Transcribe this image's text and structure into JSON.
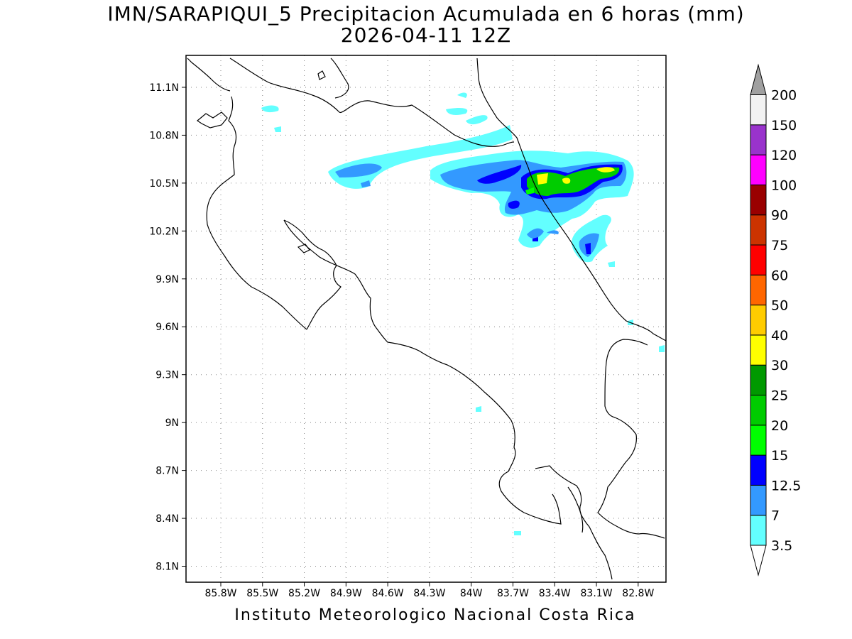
{
  "header": {
    "title": "IMN/SARAPIQUI_5 Precipitacion Acumulada en 6 horas (mm)",
    "subtitle": "2026-04-11 12Z"
  },
  "footer": {
    "credit": "Instituto Meteorologico Nacional Costa Rica"
  },
  "map": {
    "lon_range": [
      -86.05,
      -82.6
    ],
    "lat_range": [
      8.0,
      11.3
    ],
    "x_ticks": [
      {
        "value": -85.8,
        "label": "85.8W"
      },
      {
        "value": -85.5,
        "label": "85.5W"
      },
      {
        "value": -85.2,
        "label": "85.2W"
      },
      {
        "value": -84.9,
        "label": "84.9W"
      },
      {
        "value": -84.6,
        "label": "84.6W"
      },
      {
        "value": -84.3,
        "label": "84.3W"
      },
      {
        "value": -84.0,
        "label": "84W"
      },
      {
        "value": -83.7,
        "label": "83.7W"
      },
      {
        "value": -83.4,
        "label": "83.4W"
      },
      {
        "value": -83.1,
        "label": "83.1W"
      },
      {
        "value": -82.8,
        "label": "82.8W"
      }
    ],
    "y_ticks": [
      {
        "value": 11.1,
        "label": "11.1N"
      },
      {
        "value": 10.8,
        "label": "10.8N"
      },
      {
        "value": 10.5,
        "label": "10.5N"
      },
      {
        "value": 10.2,
        "label": "10.2N"
      },
      {
        "value": 9.9,
        "label": "9.9N"
      },
      {
        "value": 9.6,
        "label": "9.6N"
      },
      {
        "value": 9.3,
        "label": "9.3N"
      },
      {
        "value": 9.0,
        "label": "9N"
      },
      {
        "value": 8.7,
        "label": "8.7N"
      },
      {
        "value": 8.4,
        "label": "8.4N"
      },
      {
        "value": 8.1,
        "label": "8.1N"
      }
    ],
    "grid": true
  },
  "colorbar": {
    "bins": [
      {
        "label": "3.5",
        "color": "#63ffff"
      },
      {
        "label": "7",
        "color": "#3399ff"
      },
      {
        "label": "12.5",
        "color": "#0000ff"
      },
      {
        "label": "15",
        "color": "#00ff00"
      },
      {
        "label": "20",
        "color": "#00cc00"
      },
      {
        "label": "25",
        "color": "#009900"
      },
      {
        "label": "30",
        "color": "#ffff00"
      },
      {
        "label": "40",
        "color": "#ffcc00"
      },
      {
        "label": "50",
        "color": "#ff6600"
      },
      {
        "label": "60",
        "color": "#ff0000"
      },
      {
        "label": "75",
        "color": "#cc3300"
      },
      {
        "label": "90",
        "color": "#990000"
      },
      {
        "label": "100",
        "color": "#ff00ff"
      },
      {
        "label": "120",
        "color": "#9933cc"
      },
      {
        "label": "150",
        "color": "#f2f2f2"
      },
      {
        "label": "200",
        "color": "#a0a0a0"
      }
    ]
  }
}
